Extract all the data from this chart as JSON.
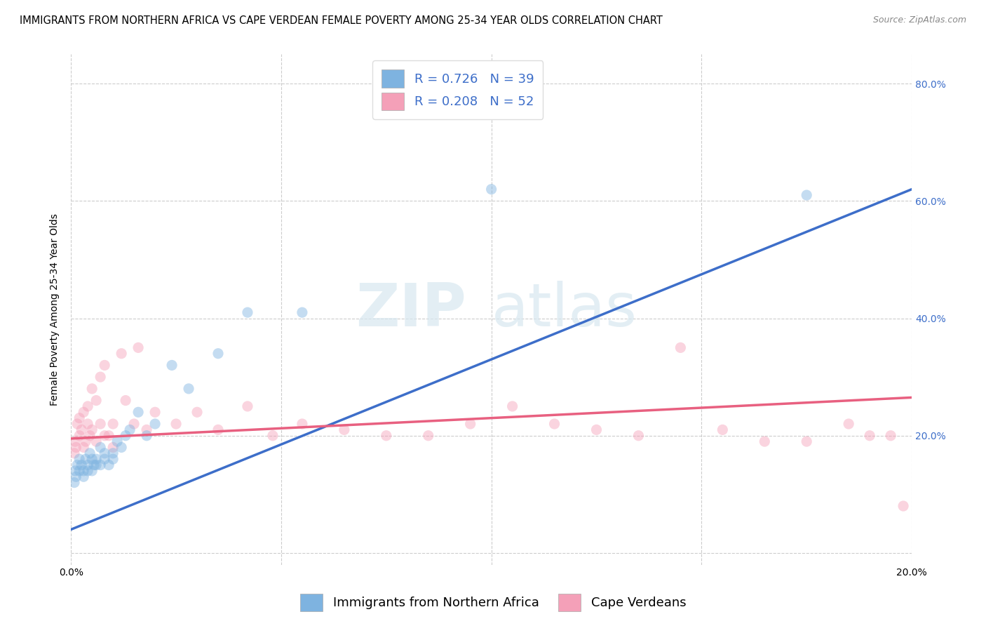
{
  "title": "IMMIGRANTS FROM NORTHERN AFRICA VS CAPE VERDEAN FEMALE POVERTY AMONG 25-34 YEAR OLDS CORRELATION CHART",
  "source": "Source: ZipAtlas.com",
  "ylabel": "Female Poverty Among 25-34 Year Olds",
  "xlim": [
    0.0,
    0.2
  ],
  "ylim": [
    -0.02,
    0.85
  ],
  "ytick_positions": [
    0.0,
    0.2,
    0.4,
    0.6,
    0.8
  ],
  "yticklabels_right": [
    "",
    "20.0%",
    "40.0%",
    "60.0%",
    "80.0%"
  ],
  "blue_color": "#7EB3E0",
  "pink_color": "#F4A0B8",
  "blue_line_color": "#3D6EC9",
  "pink_line_color": "#E86080",
  "watermark_zip": "ZIP",
  "watermark_atlas": "atlas",
  "legend_r1": "R = 0.726",
  "legend_n1": "N = 39",
  "legend_r2": "R = 0.208",
  "legend_n2": "N = 52",
  "blue_scatter_x": [
    0.0008,
    0.001,
    0.0012,
    0.0015,
    0.002,
    0.002,
    0.0025,
    0.003,
    0.003,
    0.0035,
    0.004,
    0.004,
    0.0045,
    0.005,
    0.005,
    0.0055,
    0.006,
    0.006,
    0.007,
    0.007,
    0.008,
    0.008,
    0.009,
    0.01,
    0.01,
    0.011,
    0.012,
    0.013,
    0.014,
    0.016,
    0.018,
    0.02,
    0.024,
    0.028,
    0.035,
    0.042,
    0.055,
    0.1,
    0.175
  ],
  "blue_scatter_y": [
    0.12,
    0.14,
    0.13,
    0.15,
    0.14,
    0.16,
    0.15,
    0.14,
    0.13,
    0.16,
    0.15,
    0.14,
    0.17,
    0.14,
    0.16,
    0.15,
    0.15,
    0.16,
    0.15,
    0.18,
    0.17,
    0.16,
    0.15,
    0.17,
    0.16,
    0.19,
    0.18,
    0.2,
    0.21,
    0.24,
    0.2,
    0.22,
    0.32,
    0.28,
    0.34,
    0.41,
    0.41,
    0.62,
    0.61
  ],
  "pink_scatter_x": [
    0.0008,
    0.001,
    0.0012,
    0.0015,
    0.002,
    0.002,
    0.0025,
    0.003,
    0.003,
    0.0035,
    0.004,
    0.004,
    0.0045,
    0.005,
    0.005,
    0.006,
    0.006,
    0.007,
    0.007,
    0.008,
    0.008,
    0.009,
    0.01,
    0.01,
    0.012,
    0.013,
    0.015,
    0.016,
    0.018,
    0.02,
    0.025,
    0.03,
    0.035,
    0.042,
    0.048,
    0.055,
    0.065,
    0.075,
    0.085,
    0.095,
    0.105,
    0.115,
    0.125,
    0.135,
    0.145,
    0.155,
    0.165,
    0.175,
    0.185,
    0.19,
    0.195,
    0.198
  ],
  "pink_scatter_y": [
    0.17,
    0.19,
    0.18,
    0.22,
    0.2,
    0.23,
    0.21,
    0.18,
    0.24,
    0.19,
    0.22,
    0.25,
    0.2,
    0.21,
    0.28,
    0.19,
    0.26,
    0.22,
    0.3,
    0.2,
    0.32,
    0.2,
    0.18,
    0.22,
    0.34,
    0.26,
    0.22,
    0.35,
    0.21,
    0.24,
    0.22,
    0.24,
    0.21,
    0.25,
    0.2,
    0.22,
    0.21,
    0.2,
    0.2,
    0.22,
    0.25,
    0.22,
    0.21,
    0.2,
    0.35,
    0.21,
    0.19,
    0.19,
    0.22,
    0.2,
    0.2,
    0.08
  ],
  "blue_trend_x": [
    0.0,
    0.2
  ],
  "blue_trend_y": [
    0.04,
    0.62
  ],
  "pink_trend_x": [
    0.0,
    0.2
  ],
  "pink_trend_y": [
    0.195,
    0.265
  ],
  "background_color": "#FFFFFF",
  "grid_color": "#CCCCCC",
  "title_fontsize": 10.5,
  "axis_label_fontsize": 10,
  "tick_fontsize": 10,
  "legend_fontsize": 13,
  "scatter_size": 120,
  "scatter_alpha": 0.45
}
